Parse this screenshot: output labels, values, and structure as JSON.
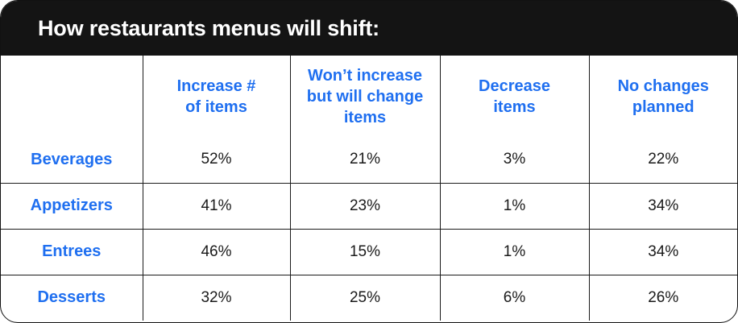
{
  "title": "How restaurants menus will shift:",
  "colors": {
    "accent": "#1f6ff0",
    "header_bg": "#141414",
    "text": "#1a1a1a"
  },
  "chart_data": {
    "type": "table",
    "columns": [
      "",
      "Increase # of items",
      "Won’t increase but will change items",
      "Decrease items",
      "No changes planned"
    ],
    "column_lines": [
      [],
      [
        "Increase #",
        "of items"
      ],
      [
        "Won’t increase",
        "but will change",
        "items"
      ],
      [
        "Decrease",
        "items"
      ],
      [
        "No changes",
        "planned"
      ]
    ],
    "rows": [
      {
        "label": "Beverages",
        "values": [
          "52%",
          "21%",
          "3%",
          "22%"
        ]
      },
      {
        "label": "Appetizers",
        "values": [
          "41%",
          "23%",
          "1%",
          "34%"
        ]
      },
      {
        "label": "Entrees",
        "values": [
          "46%",
          "15%",
          "1%",
          "34%"
        ]
      },
      {
        "label": "Desserts",
        "values": [
          "32%",
          "25%",
          "6%",
          "26%"
        ]
      }
    ]
  }
}
